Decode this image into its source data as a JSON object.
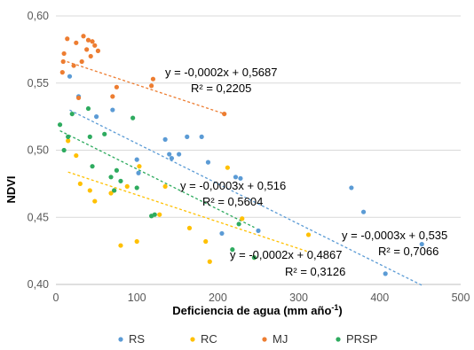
{
  "chart_data": {
    "type": "scatter",
    "xlabel": "Deficiencia de agua (mm año",
    "xlabel_sup": "-1",
    "xlabel_close": ")",
    "ylabel": "NDVI",
    "xlim": [
      0,
      500
    ],
    "ylim": [
      0.4,
      0.6
    ],
    "x_ticks": [
      "0",
      "100",
      "200",
      "300",
      "400",
      "500"
    ],
    "y_ticks": [
      "0,40",
      "0,45",
      "0,50",
      "0,55",
      "0,60"
    ],
    "grid": true,
    "legend_position": "bottom",
    "series": [
      {
        "name": "RS",
        "color": "#5B9BD5",
        "points": [
          [
            17,
            0.555
          ],
          [
            28,
            0.54
          ],
          [
            50,
            0.525
          ],
          [
            70,
            0.53
          ],
          [
            100,
            0.493
          ],
          [
            102,
            0.483
          ],
          [
            135,
            0.508
          ],
          [
            140,
            0.497
          ],
          [
            143,
            0.494
          ],
          [
            152,
            0.497
          ],
          [
            162,
            0.51
          ],
          [
            180,
            0.51
          ],
          [
            188,
            0.491
          ],
          [
            205,
            0.438
          ],
          [
            222,
            0.48
          ],
          [
            228,
            0.479
          ],
          [
            250,
            0.44
          ],
          [
            365,
            0.472
          ],
          [
            380,
            0.454
          ],
          [
            407,
            0.408
          ],
          [
            452,
            0.43
          ]
        ],
        "trend": {
          "x": [
            17,
            452
          ],
          "slope": -0.0003,
          "intercept": 0.535
        },
        "equation": "y = -0,0003x + 0,535",
        "r2": "R² = 0,7066"
      },
      {
        "name": "RC",
        "color": "#FFC000",
        "points": [
          [
            15,
            0.507
          ],
          [
            25,
            0.496
          ],
          [
            30,
            0.475
          ],
          [
            42,
            0.47
          ],
          [
            48,
            0.462
          ],
          [
            68,
            0.468
          ],
          [
            72,
            0.47
          ],
          [
            80,
            0.429
          ],
          [
            88,
            0.473
          ],
          [
            100,
            0.432
          ],
          [
            103,
            0.488
          ],
          [
            128,
            0.452
          ],
          [
            135,
            0.473
          ],
          [
            165,
            0.442
          ],
          [
            185,
            0.432
          ],
          [
            190,
            0.417
          ],
          [
            212,
            0.487
          ],
          [
            230,
            0.449
          ],
          [
            245,
            0.42
          ],
          [
            312,
            0.437
          ]
        ],
        "trend": {
          "x": [
            15,
            312
          ],
          "slope": -0.0002,
          "intercept": 0.4867
        },
        "equation": "y = -0,0002x + 0,4867",
        "r2": "R² = 0,3126"
      },
      {
        "name": "MJ",
        "color": "#ED7D31",
        "points": [
          [
            8,
            0.558
          ],
          [
            9,
            0.566
          ],
          [
            10,
            0.572
          ],
          [
            14,
            0.583
          ],
          [
            22,
            0.563
          ],
          [
            25,
            0.58
          ],
          [
            28,
            0.539
          ],
          [
            32,
            0.566
          ],
          [
            34,
            0.585
          ],
          [
            38,
            0.575
          ],
          [
            40,
            0.582
          ],
          [
            43,
            0.57
          ],
          [
            45,
            0.581
          ],
          [
            48,
            0.578
          ],
          [
            52,
            0.574
          ],
          [
            70,
            0.54
          ],
          [
            75,
            0.547
          ],
          [
            118,
            0.548
          ],
          [
            120,
            0.553
          ],
          [
            208,
            0.527
          ]
        ],
        "trend": {
          "x": [
            8,
            208
          ],
          "slope": -0.0002,
          "intercept": 0.5687
        },
        "equation": "y = -0,0002x + 0,5687",
        "r2": "R² = 0,2205"
      },
      {
        "name": "PRSP",
        "color": "#2EAB5F",
        "points": [
          [
            5,
            0.519
          ],
          [
            10,
            0.5
          ],
          [
            15,
            0.51
          ],
          [
            20,
            0.527
          ],
          [
            40,
            0.531
          ],
          [
            42,
            0.51
          ],
          [
            45,
            0.488
          ],
          [
            60,
            0.512
          ],
          [
            68,
            0.48
          ],
          [
            72,
            0.47
          ],
          [
            75,
            0.485
          ],
          [
            80,
            0.477
          ],
          [
            95,
            0.524
          ],
          [
            100,
            0.472
          ],
          [
            118,
            0.451
          ],
          [
            122,
            0.452
          ],
          [
            218,
            0.426
          ],
          [
            226,
            0.445
          ],
          [
            245,
            0.42
          ]
        ],
        "trend": {
          "x": [
            5,
            245
          ],
          "slope": -0.0003,
          "intercept": 0.516
        },
        "equation": "y = -0,0003x + 0,516",
        "r2": "R² = 0,5604"
      }
    ]
  }
}
